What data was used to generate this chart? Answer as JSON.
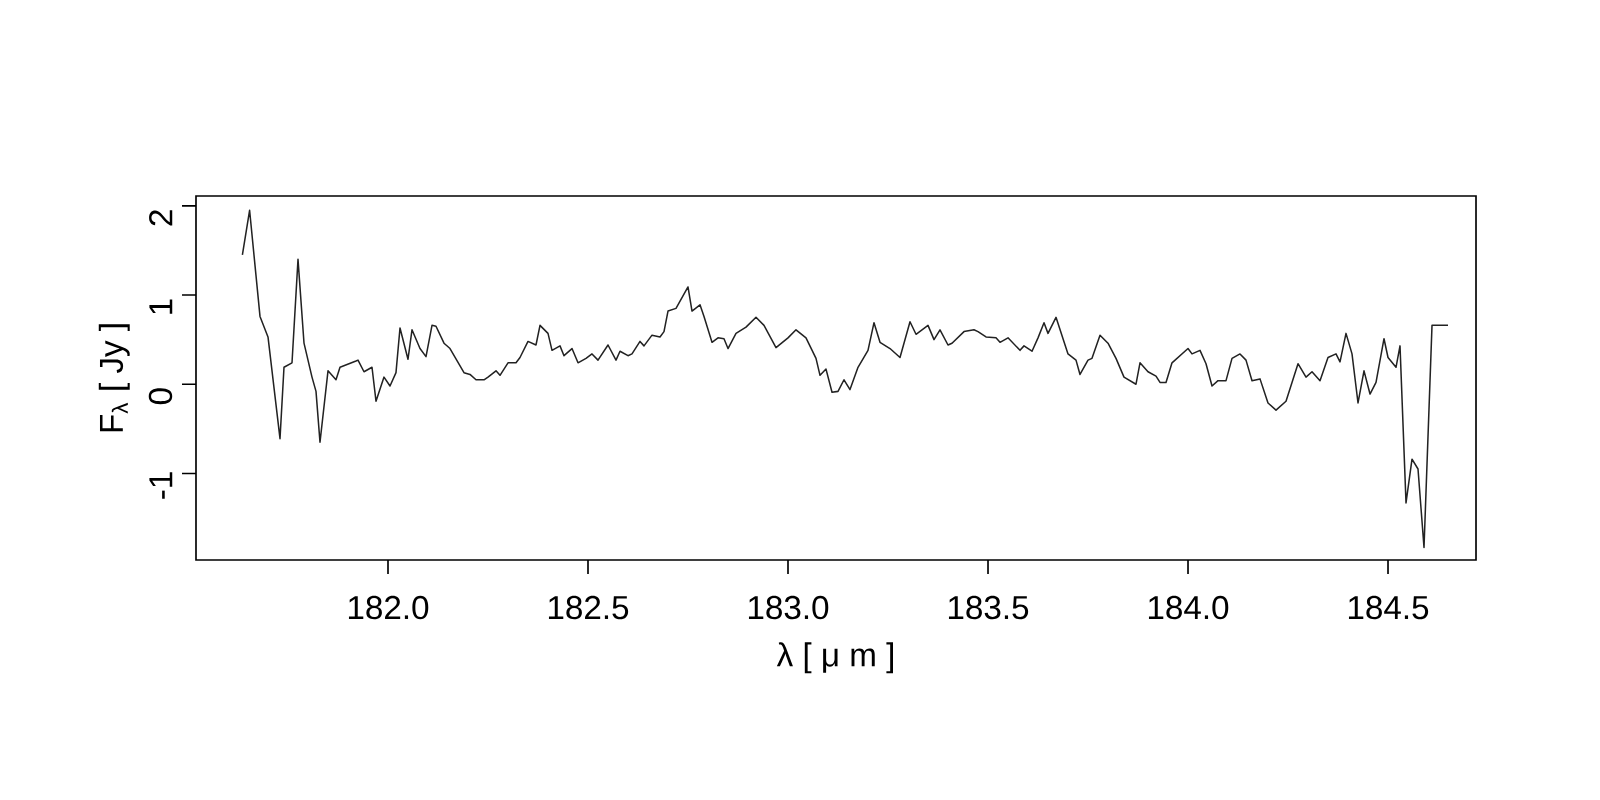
{
  "chart_data": {
    "type": "line",
    "xlabel": "λ [ μ m ]",
    "ylabel": "F$_{λ}$ [ Jy ]",
    "xlim": [
      181.52,
      184.72
    ],
    "ylim": [
      -1.97,
      2.11
    ],
    "xticks": [
      {
        "value": 182.0,
        "label": "182.0"
      },
      182.5,
      {
        "value": 183.0,
        "label": "183.0"
      },
      183.5,
      {
        "value": 184.0,
        "label": "184.0"
      },
      184.5
    ],
    "yticks": [
      -1,
      0,
      1,
      2
    ],
    "grid": false,
    "marker": "none",
    "line_style": "solid",
    "series": [
      {
        "color": "#222222",
        "x": [
          181.636,
          181.654,
          181.68,
          181.7,
          181.73,
          181.74,
          181.76,
          181.775,
          181.79,
          181.81,
          181.82,
          181.83,
          181.85,
          181.87,
          181.88,
          181.92,
          181.925,
          181.94,
          181.96,
          181.97,
          181.99,
          182.005,
          182.02,
          182.03,
          182.05,
          182.06,
          182.08,
          182.095,
          182.11,
          182.12,
          182.14,
          182.155,
          182.19,
          182.205,
          182.22,
          182.24,
          182.25,
          182.27,
          182.28,
          182.3,
          182.32,
          182.33,
          182.35,
          182.37,
          182.38,
          182.4,
          182.41,
          182.43,
          182.44,
          182.46,
          182.475,
          182.495,
          182.51,
          182.525,
          182.55,
          182.57,
          182.58,
          182.6,
          182.61,
          182.63,
          182.64,
          182.66,
          182.68,
          182.69,
          182.7,
          182.72,
          182.75,
          182.76,
          182.78,
          182.79,
          182.81,
          182.825,
          182.84,
          182.85,
          182.87,
          182.895,
          182.92,
          182.94,
          182.97,
          183.0,
          183.02,
          183.045,
          183.07,
          183.08,
          183.095,
          183.11,
          183.125,
          183.14,
          183.155,
          183.175,
          183.2,
          183.215,
          183.23,
          183.255,
          183.28,
          183.305,
          183.32,
          183.35,
          183.365,
          183.38,
          183.4,
          183.41,
          183.44,
          183.465,
          183.475,
          183.495,
          183.52,
          183.53,
          183.55,
          183.58,
          183.59,
          183.61,
          183.625,
          183.64,
          183.65,
          183.67,
          183.7,
          183.72,
          183.73,
          183.75,
          183.76,
          183.78,
          183.8,
          183.82,
          183.84,
          183.87,
          183.88,
          183.9,
          183.92,
          183.93,
          183.945,
          183.96,
          184.0,
          184.01,
          184.03,
          184.045,
          184.06,
          184.075,
          184.095,
          184.11,
          184.13,
          184.145,
          184.16,
          184.18,
          184.2,
          184.22,
          184.245,
          184.275,
          184.295,
          184.31,
          184.33,
          184.35,
          184.37,
          184.38,
          184.395,
          184.41,
          184.425,
          184.44,
          184.455,
          184.47,
          184.49,
          184.5,
          184.52,
          184.53,
          184.545,
          184.56,
          184.575,
          184.59,
          184.61,
          184.65
        ],
        "values": [
          1.45,
          1.95,
          0.76,
          0.53,
          -0.61,
          0.19,
          0.24,
          1.4,
          0.46,
          0.08,
          -0.08,
          -0.65,
          0.15,
          0.05,
          0.19,
          0.26,
          0.27,
          0.14,
          0.19,
          -0.19,
          0.08,
          -0.02,
          0.13,
          0.63,
          0.28,
          0.61,
          0.4,
          0.31,
          0.66,
          0.65,
          0.46,
          0.4,
          0.13,
          0.11,
          0.05,
          0.05,
          0.08,
          0.15,
          0.1,
          0.24,
          0.24,
          0.3,
          0.48,
          0.44,
          0.66,
          0.57,
          0.38,
          0.43,
          0.32,
          0.4,
          0.24,
          0.29,
          0.34,
          0.27,
          0.44,
          0.27,
          0.37,
          0.32,
          0.34,
          0.48,
          0.43,
          0.55,
          0.53,
          0.59,
          0.82,
          0.85,
          1.09,
          0.82,
          0.89,
          0.76,
          0.47,
          0.52,
          0.51,
          0.4,
          0.57,
          0.64,
          0.75,
          0.66,
          0.41,
          0.52,
          0.61,
          0.52,
          0.29,
          0.1,
          0.17,
          -0.09,
          -0.08,
          0.05,
          -0.06,
          0.19,
          0.38,
          0.69,
          0.47,
          0.4,
          0.3,
          0.7,
          0.56,
          0.66,
          0.5,
          0.61,
          0.44,
          0.46,
          0.59,
          0.61,
          0.59,
          0.53,
          0.52,
          0.47,
          0.52,
          0.38,
          0.43,
          0.37,
          0.52,
          0.69,
          0.57,
          0.75,
          0.34,
          0.27,
          0.11,
          0.27,
          0.29,
          0.55,
          0.46,
          0.29,
          0.08,
          0.0,
          0.24,
          0.14,
          0.09,
          0.02,
          0.02,
          0.24,
          0.4,
          0.34,
          0.38,
          0.23,
          -0.02,
          0.04,
          0.04,
          0.29,
          0.34,
          0.27,
          0.04,
          0.06,
          -0.21,
          -0.29,
          -0.19,
          0.23,
          0.08,
          0.14,
          0.04,
          0.3,
          0.34,
          0.25,
          0.57,
          0.34,
          -0.21,
          0.15,
          -0.11,
          0.02,
          0.51,
          0.3,
          0.19,
          0.43,
          -1.33,
          -0.84,
          -0.95,
          -1.83,
          0.66,
          0.66
        ]
      }
    ]
  }
}
